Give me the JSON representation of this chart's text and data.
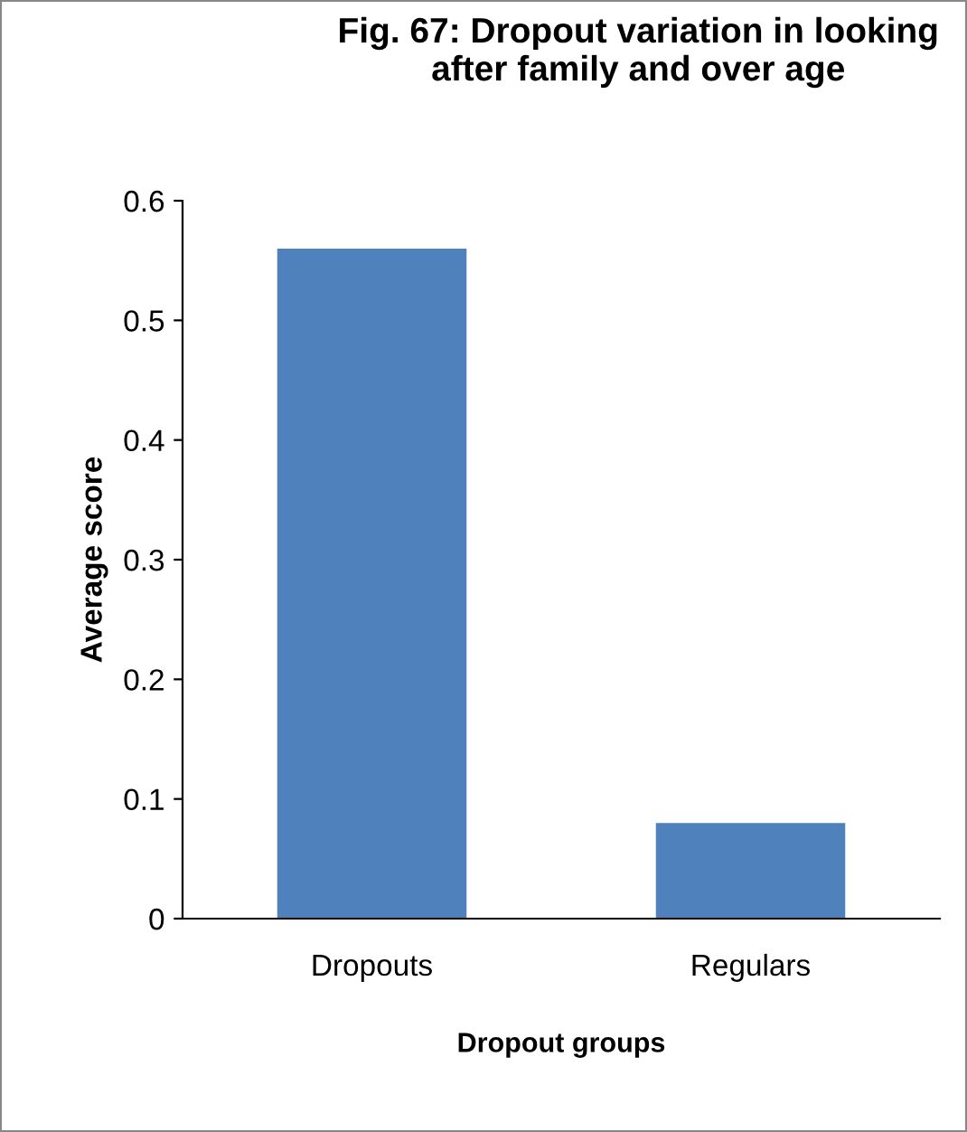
{
  "chart_data": {
    "type": "bar",
    "title": "Fig. 67: Dropout variation in looking after family and over age",
    "xlabel": "Dropout groups",
    "ylabel": "Average score",
    "categories": [
      "Dropouts",
      "Regulars"
    ],
    "values": [
      0.56,
      0.08
    ],
    "color": "#4f81bd",
    "ylim": [
      0,
      0.6
    ],
    "yticks": [
      0,
      0.1,
      0.2,
      0.3,
      0.4,
      0.5,
      0.6
    ],
    "grid": false,
    "legend": false
  }
}
